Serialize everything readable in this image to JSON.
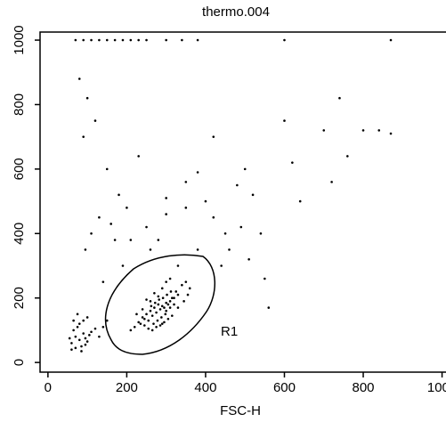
{
  "chart_data": {
    "type": "scatter",
    "title": "thermo.004",
    "x_label": "FSC-H",
    "annotation": "R1",
    "x": [
      250,
      260,
      270,
      280,
      290,
      300,
      310,
      320,
      330,
      240,
      255,
      265,
      275,
      285,
      295,
      305,
      315,
      325,
      235,
      245,
      262,
      272,
      282,
      292,
      302,
      312,
      268,
      278,
      288,
      298,
      220,
      230,
      340,
      350,
      360,
      210,
      225,
      345,
      355,
      290,
      275,
      285,
      295,
      305,
      315,
      265,
      255,
      245,
      300,
      310,
      320,
      330,
      280,
      270,
      260,
      250,
      240,
      290,
      300,
      310,
      60,
      70,
      80,
      90,
      100,
      65,
      75,
      85,
      95,
      105,
      60,
      70,
      80,
      90,
      100,
      110,
      120,
      130,
      140,
      150,
      75,
      85,
      55,
      95,
      65,
      80,
      100,
      120,
      90,
      150,
      180,
      200,
      130,
      110,
      95,
      160,
      210,
      250,
      300,
      350,
      400,
      420,
      450,
      480,
      500,
      520,
      540,
      600,
      620,
      640,
      700,
      720,
      740,
      760,
      800,
      840,
      870,
      380,
      330,
      280,
      230,
      190,
      140,
      170,
      440,
      460,
      490,
      510,
      550,
      560,
      380,
      420,
      350,
      300,
      260,
      70,
      90,
      110,
      130,
      150,
      170,
      190,
      210,
      230,
      250,
      300,
      340,
      380,
      600,
      870
    ],
    "y": [
      150,
      160,
      170,
      180,
      175,
      185,
      190,
      200,
      210,
      140,
      130,
      145,
      155,
      165,
      170,
      180,
      200,
      220,
      120,
      135,
      175,
      185,
      195,
      200,
      210,
      220,
      120,
      130,
      140,
      150,
      110,
      125,
      240,
      250,
      230,
      100,
      150,
      190,
      210,
      230,
      110,
      115,
      125,
      135,
      145,
      100,
      105,
      115,
      160,
      170,
      180,
      170,
      205,
      215,
      190,
      195,
      165,
      120,
      250,
      260,
      60,
      80,
      70,
      90,
      65,
      100,
      110,
      50,
      75,
      85,
      40,
      45,
      120,
      130,
      140,
      95,
      105,
      80,
      110,
      130,
      150,
      35,
      75,
      55,
      130,
      880,
      820,
      750,
      700,
      600,
      520,
      480,
      450,
      400,
      350,
      430,
      380,
      420,
      460,
      480,
      500,
      450,
      400,
      550,
      600,
      520,
      400,
      750,
      620,
      500,
      720,
      560,
      820,
      640,
      720,
      720,
      710,
      350,
      300,
      380,
      640,
      300,
      250,
      380,
      300,
      350,
      420,
      320,
      260,
      170,
      590,
      700,
      560,
      510,
      350,
      1000,
      1000,
      1000,
      1000,
      1000,
      1000,
      1000,
      1000,
      1000,
      1000,
      1000,
      1000,
      1000,
      1000,
      1000
    ],
    "color": "#000000",
    "xlim": [
      -20,
      1010
    ],
    "ylim": [
      -30,
      1025
    ],
    "xticks": [
      0,
      200,
      400,
      600,
      800,
      1000
    ],
    "yticks": [
      0,
      200,
      400,
      600,
      800,
      1000
    ]
  }
}
